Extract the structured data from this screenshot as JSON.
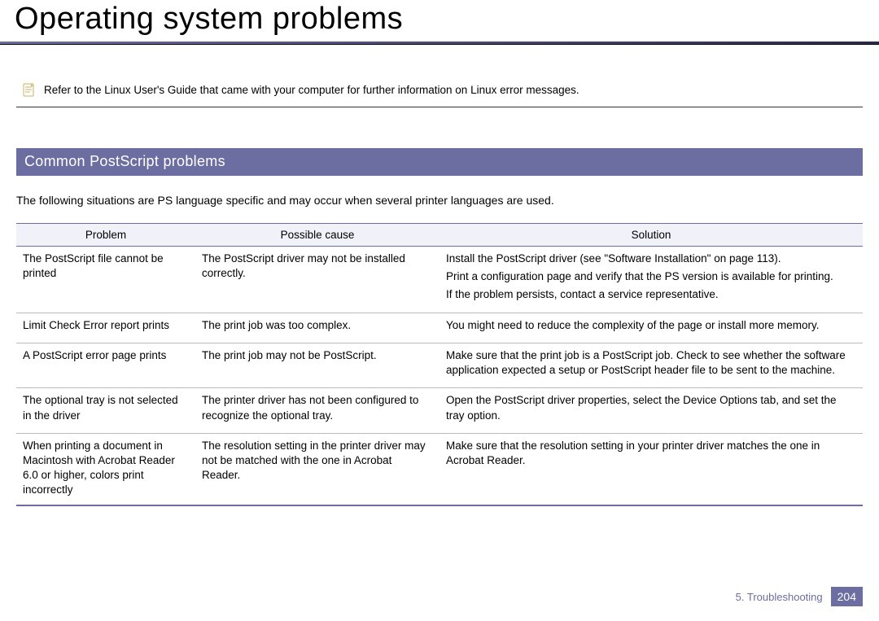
{
  "page": {
    "title": "Operating system problems",
    "note": "Refer to the Linux User's Guide that came with your computer for further information on Linux error messages.",
    "section_header": "Common PostScript problems",
    "intro": "The following situations are PS language specific and may occur when several printer languages are used.",
    "footer_chapter": "5. Troubleshooting",
    "page_number": "204"
  },
  "table": {
    "headers": [
      "Problem",
      "Possible cause",
      "Solution"
    ],
    "col_widths": [
      "220px",
      "300px",
      "auto"
    ],
    "header_bg": "#f1f1fa",
    "border_color": "#6c6da0",
    "rows": [
      {
        "problem": "The PostScript file cannot be printed",
        "cause": "The PostScript driver may not be installed correctly.",
        "solution": [
          "Install the PostScript driver (see \"Software Installation\" on page 113).",
          "Print a configuration page and verify that the PS version is available for printing.",
          "If the problem persists, contact a service representative."
        ]
      },
      {
        "problem": "Limit Check Error report prints",
        "cause": "The print job was too complex.",
        "solution": [
          "You might need to reduce the complexity of the page or install more memory."
        ]
      },
      {
        "problem": "A PostScript error page prints",
        "cause": "The print job may not be PostScript.",
        "solution": [
          "Make sure that the print job is a PostScript job. Check to see whether the software application expected a setup or PostScript header file to be sent to the machine."
        ]
      },
      {
        "problem": "The optional tray is not selected in the driver",
        "cause": "The printer driver has not been configured to recognize the optional tray.",
        "solution": [
          "Open the PostScript driver properties, select the Device Options tab, and set the tray option."
        ]
      },
      {
        "problem": "When printing a document in Macintosh with Acrobat Reader 6.0 or higher, colors print incorrectly",
        "cause": "The resolution setting in the printer driver may not be matched with the one in Acrobat Reader.",
        "solution": [
          "Make sure that the resolution setting in your printer driver matches the one in Acrobat Reader."
        ]
      }
    ]
  },
  "colors": {
    "accent": "#6c6da0",
    "title_bar_gradient_start": "#6c6da0",
    "title_bar_gradient_end": "#2a2a4a"
  }
}
